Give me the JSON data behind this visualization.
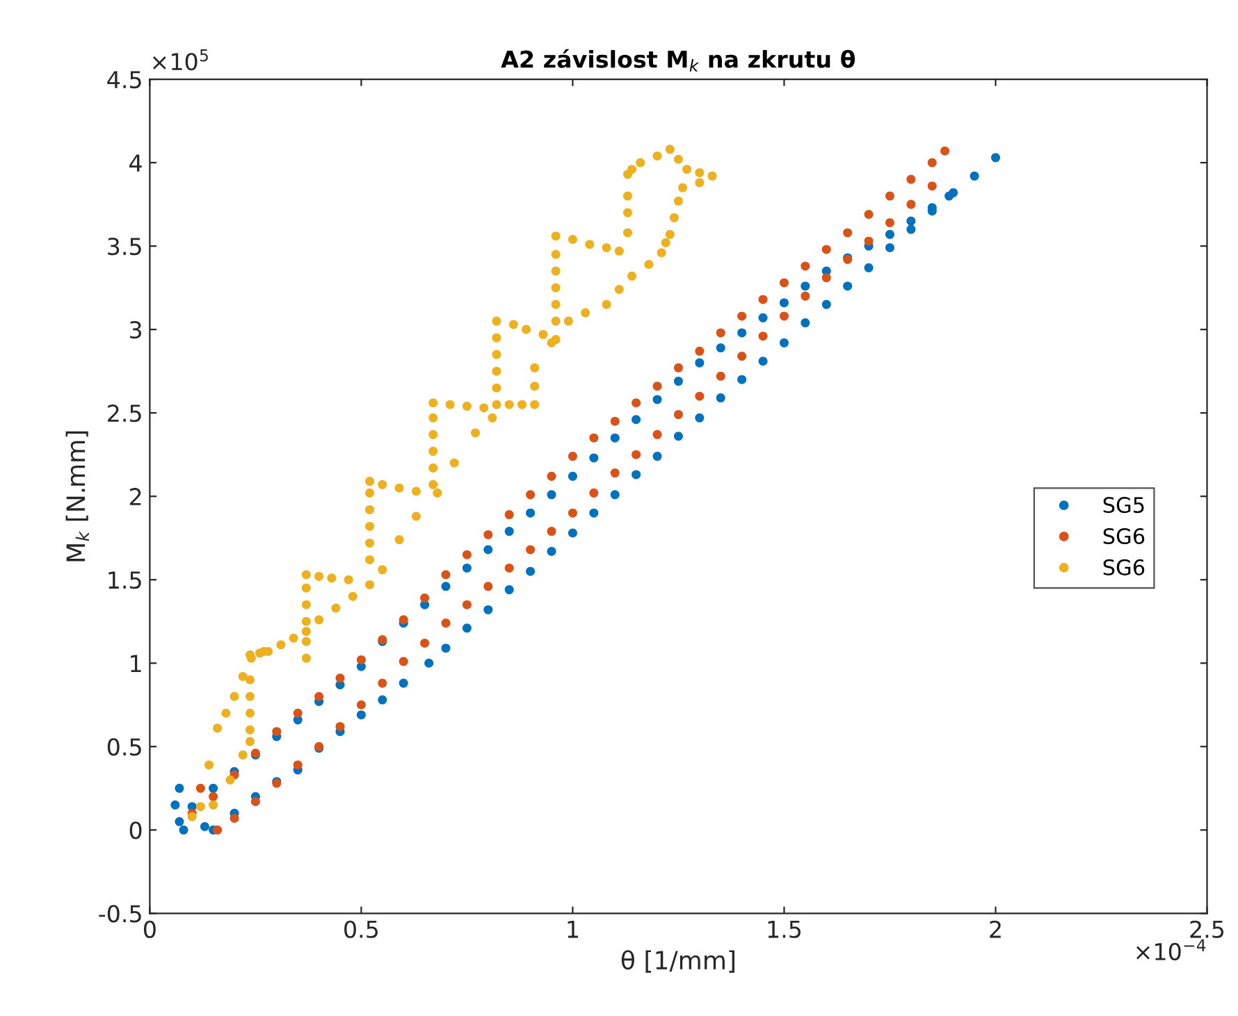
{
  "chart_data": {
    "type": "scatter",
    "title": "A2 závislost M$_{k}$ na zkrutu θ",
    "xlabel": "θ [1/mm]",
    "ylabel": "M$_{k}$ [N.mm]",
    "xlim": [
      0,
      2.5
    ],
    "ylim": [
      -0.5,
      4.5
    ],
    "xticks": [
      0,
      0.5,
      1,
      1.5,
      2,
      2.5
    ],
    "yticks": [
      -0.5,
      0,
      0.5,
      1,
      1.5,
      2,
      2.5,
      3,
      3.5,
      4,
      4.5
    ],
    "annotations": [
      "×10$^{5}$",
      "×10$^{−4}$"
    ],
    "grid": false,
    "legend": "right",
    "marker": "circle",
    "series": [
      {
        "name": "SG5",
        "color": "#0072bd",
        "x": [
          0.15,
          0.2,
          0.25,
          0.3,
          0.35,
          0.4,
          0.45,
          0.5,
          0.55,
          0.6,
          0.66,
          0.7,
          0.75,
          0.8,
          0.85,
          0.9,
          0.95,
          1.0,
          1.05,
          1.1,
          1.15,
          1.2,
          1.25,
          1.3,
          1.35,
          1.4,
          1.45,
          1.5,
          1.55,
          1.6,
          1.65,
          1.7,
          1.75,
          1.8,
          1.85,
          1.9,
          1.95,
          2.0,
          1.89,
          1.85,
          1.8,
          1.75,
          1.7,
          1.65,
          1.6,
          1.55,
          1.5,
          1.45,
          1.4,
          1.35,
          1.3,
          1.25,
          1.2,
          1.15,
          1.1,
          1.05,
          1.0,
          0.95,
          0.9,
          0.85,
          0.8,
          0.75,
          0.7,
          0.65,
          0.6,
          0.55,
          0.5,
          0.45,
          0.4,
          0.35,
          0.3,
          0.25,
          0.2,
          0.15,
          0.1,
          0.07,
          0.06,
          0.07,
          0.08,
          0.13
        ],
        "values": [
          0.0,
          0.1,
          0.2,
          0.29,
          0.36,
          0.49,
          0.59,
          0.69,
          0.78,
          0.88,
          1.0,
          1.09,
          1.21,
          1.32,
          1.44,
          1.55,
          1.67,
          1.78,
          1.9,
          2.01,
          2.13,
          2.24,
          2.36,
          2.47,
          2.59,
          2.7,
          2.81,
          2.92,
          3.04,
          3.15,
          3.26,
          3.37,
          3.49,
          3.6,
          3.71,
          3.82,
          3.92,
          4.03,
          3.8,
          3.73,
          3.65,
          3.57,
          3.5,
          3.43,
          3.35,
          3.26,
          3.16,
          3.07,
          2.98,
          2.89,
          2.8,
          2.69,
          2.58,
          2.46,
          2.35,
          2.23,
          2.12,
          2.01,
          1.9,
          1.79,
          1.68,
          1.57,
          1.46,
          1.35,
          1.24,
          1.13,
          0.98,
          0.87,
          0.77,
          0.66,
          0.56,
          0.45,
          0.35,
          0.25,
          0.14,
          0.05,
          0.15,
          0.25,
          0.0,
          0.02
        ]
      },
      {
        "name": "SG6",
        "color": "#d95319",
        "x": [
          1.88,
          1.85,
          1.8,
          1.75,
          1.7,
          1.65,
          1.6,
          1.55,
          1.5,
          1.45,
          1.4,
          1.35,
          1.3,
          1.25,
          1.2,
          1.15,
          1.1,
          1.05,
          1.0,
          0.95,
          0.9,
          0.85,
          0.8,
          0.75,
          0.7,
          0.65,
          0.6,
          0.55,
          0.5,
          0.45,
          0.4,
          0.35,
          0.3,
          0.25,
          0.2,
          0.15,
          0.1,
          0.12,
          0.16,
          0.2,
          0.25,
          0.3,
          0.35,
          0.4,
          0.45,
          0.5,
          0.55,
          0.6,
          0.65,
          0.7,
          0.75,
          0.8,
          0.85,
          0.9,
          0.95,
          1.0,
          1.05,
          1.1,
          1.15,
          1.2,
          1.25,
          1.3,
          1.35,
          1.4,
          1.45,
          1.5,
          1.55,
          1.6,
          1.65,
          1.7,
          1.75,
          1.8,
          1.85
        ],
        "values": [
          4.07,
          4.0,
          3.9,
          3.8,
          3.69,
          3.58,
          3.48,
          3.38,
          3.28,
          3.18,
          3.08,
          2.98,
          2.87,
          2.77,
          2.66,
          2.56,
          2.45,
          2.35,
          2.24,
          2.12,
          2.01,
          1.89,
          1.77,
          1.65,
          1.53,
          1.39,
          1.26,
          1.14,
          1.02,
          0.91,
          0.8,
          0.7,
          0.59,
          0.46,
          0.33,
          0.2,
          0.1,
          0.25,
          0.0,
          0.07,
          0.17,
          0.28,
          0.39,
          0.5,
          0.62,
          0.75,
          0.88,
          1.01,
          1.12,
          1.24,
          1.35,
          1.46,
          1.57,
          1.68,
          1.79,
          1.9,
          2.02,
          2.14,
          2.25,
          2.37,
          2.49,
          2.6,
          2.72,
          2.84,
          2.96,
          3.08,
          3.2,
          3.31,
          3.42,
          3.53,
          3.64,
          3.75,
          3.86
        ]
      },
      {
        "name": "SG6",
        "color": "#edb120",
        "x": [
          0.1,
          0.12,
          0.14,
          0.16,
          0.18,
          0.2,
          0.22,
          0.24,
          0.27,
          0.31,
          0.34,
          0.37,
          0.4,
          0.44,
          0.48,
          0.52,
          0.55,
          0.59,
          0.63,
          0.68,
          0.72,
          0.77,
          0.81,
          0.85,
          0.88,
          0.91,
          0.91,
          0.91,
          0.95,
          0.99,
          1.03,
          1.08,
          1.11,
          1.14,
          1.18,
          1.21,
          1.22,
          1.23,
          1.24,
          1.25,
          1.26,
          1.3,
          1.33,
          1.3,
          1.27,
          1.25,
          1.23,
          1.2,
          1.16,
          1.14,
          1.13,
          1.13,
          1.13,
          1.13,
          0.15,
          0.19,
          0.22,
          0.237,
          0.237,
          0.237,
          0.237,
          0.237,
          0.237,
          0.26,
          0.28,
          0.37,
          0.37,
          0.37,
          0.37,
          0.37,
          0.37,
          0.4,
          0.43,
          0.47,
          0.52,
          0.52,
          0.52,
          0.52,
          0.52,
          0.52,
          0.55,
          0.59,
          0.63,
          0.67,
          0.67,
          0.67,
          0.67,
          0.67,
          0.67,
          0.71,
          0.75,
          0.79,
          0.82,
          0.82,
          0.82,
          0.82,
          0.82,
          0.82,
          0.86,
          0.89,
          0.93,
          0.96,
          0.96,
          0.96,
          0.96,
          0.96,
          0.96,
          0.96,
          1.0,
          1.04,
          1.08,
          1.11
        ],
        "values": [
          0.08,
          0.14,
          0.39,
          0.61,
          0.7,
          0.8,
          0.92,
          1.03,
          1.07,
          1.11,
          1.15,
          1.19,
          1.26,
          1.33,
          1.4,
          1.47,
          1.56,
          1.74,
          1.88,
          2.02,
          2.2,
          2.38,
          2.47,
          2.55,
          2.55,
          2.55,
          2.66,
          2.77,
          2.92,
          3.05,
          3.1,
          3.15,
          3.24,
          3.32,
          3.39,
          3.46,
          3.52,
          3.57,
          3.67,
          3.77,
          3.85,
          3.88,
          3.92,
          3.94,
          3.96,
          4.02,
          4.08,
          4.04,
          4.0,
          3.96,
          3.93,
          3.8,
          3.7,
          3.58,
          0.15,
          0.3,
          0.45,
          0.53,
          0.6,
          0.7,
          0.8,
          0.9,
          1.05,
          1.06,
          1.07,
          1.03,
          1.13,
          1.25,
          1.35,
          1.45,
          1.53,
          1.52,
          1.51,
          1.5,
          1.62,
          1.72,
          1.82,
          1.92,
          2.02,
          2.09,
          2.07,
          2.05,
          2.03,
          2.07,
          2.17,
          2.27,
          2.37,
          2.47,
          2.56,
          2.55,
          2.54,
          2.53,
          2.55,
          2.65,
          2.75,
          2.85,
          2.95,
          3.05,
          3.03,
          3.0,
          2.97,
          2.94,
          3.05,
          3.15,
          3.25,
          3.35,
          3.45,
          3.56,
          3.54,
          3.51,
          3.49,
          3.47
        ]
      }
    ]
  }
}
